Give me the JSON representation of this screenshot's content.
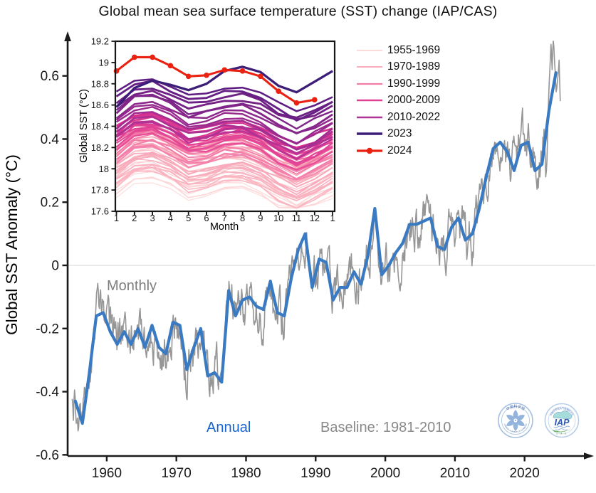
{
  "title": "Global mean sea surface temperature (SST) change (IAP/CAS)",
  "colors": {
    "annual_line": "#3a7ac2",
    "monthly_line": "#969696",
    "annual_label": "#1565d2",
    "monthly_label": "#7d7d7d",
    "baseline_label": "#8a8a8a",
    "axis": "#1a1a1a",
    "zero_line": "#dddddd"
  },
  "chart_data": [
    {
      "id": "main",
      "type": "line",
      "title": "Global mean sea surface temperature (SST) change (IAP/CAS)",
      "xlabel": "",
      "ylabel": "Global SST Anomaly (°C)",
      "xlim": [
        1954.2,
        2026.6
      ],
      "ylim": [
        -0.62,
        0.74
      ],
      "x_ticks": [
        1960,
        1970,
        1980,
        1990,
        2000,
        2010,
        2020
      ],
      "y_ticks": [
        -0.6,
        -0.4,
        -0.2,
        0,
        0.2,
        0.4,
        0.6
      ],
      "grid": "zero-line-only",
      "annotations": [
        {
          "text": "Monthly"
        },
        {
          "text": "Annual"
        },
        {
          "text": "Baseline: 1981-2010"
        }
      ],
      "series": [
        {
          "name": "Annual",
          "color": "#3a7ac2",
          "width": 4.2,
          "years": [
            1955,
            1956,
            1957,
            1958,
            1959,
            1960,
            1961,
            1962,
            1963,
            1964,
            1965,
            1966,
            1967,
            1968,
            1969,
            1970,
            1971,
            1972,
            1973,
            1974,
            1975,
            1976,
            1977,
            1978,
            1979,
            1980,
            1981,
            1982,
            1983,
            1984,
            1985,
            1986,
            1987,
            1988,
            1989,
            1990,
            1991,
            1992,
            1993,
            1994,
            1995,
            1996,
            1997,
            1998,
            1999,
            2000,
            2001,
            2002,
            2003,
            2004,
            2005,
            2006,
            2007,
            2008,
            2009,
            2010,
            2011,
            2012,
            2013,
            2014,
            2015,
            2016,
            2017,
            2018,
            2019,
            2020,
            2021,
            2022,
            2023,
            2024
          ],
          "values": [
            -0.43,
            -0.5,
            -0.34,
            -0.16,
            -0.15,
            -0.21,
            -0.25,
            -0.21,
            -0.25,
            -0.2,
            -0.26,
            -0.19,
            -0.26,
            -0.28,
            -0.18,
            -0.19,
            -0.33,
            -0.26,
            -0.2,
            -0.35,
            -0.34,
            -0.37,
            -0.08,
            -0.16,
            -0.11,
            -0.1,
            -0.13,
            -0.14,
            -0.05,
            -0.15,
            -0.16,
            -0.04,
            0.05,
            0.1,
            -0.07,
            0.02,
            0.01,
            -0.11,
            -0.07,
            -0.07,
            -0.02,
            -0.06,
            0.03,
            0.18,
            -0.03,
            0.0,
            0.04,
            0.07,
            0.13,
            0.13,
            0.14,
            0.15,
            0.06,
            0.05,
            0.12,
            0.15,
            0.08,
            0.1,
            0.18,
            0.28,
            0.37,
            0.39,
            0.36,
            0.3,
            0.38,
            0.39,
            0.3,
            0.32,
            0.49,
            0.61
          ]
        },
        {
          "name": "Monthly",
          "color": "#969696",
          "width": 1.6,
          "derivation": "annual series interpolated monthly plus intra-annual variability",
          "noise_amplitude": 0.1,
          "recent_monthly": {
            "start_year": 2023,
            "values": [
              0.28,
              0.3,
              0.33,
              0.4,
              0.47,
              0.53,
              0.58,
              0.62,
              0.66,
              0.7,
              0.66,
              0.62,
              0.68,
              0.71,
              0.69,
              0.65,
              0.62,
              0.58,
              0.55,
              0.56,
              0.58,
              0.6,
              0.62,
              0.65,
              0.58,
              0.52
            ]
          }
        }
      ]
    },
    {
      "id": "inset",
      "type": "line",
      "xlabel": "Month",
      "ylabel": "Global SST (°C)",
      "ylim": [
        17.6,
        19.2
      ],
      "y_ticks": [
        17.6,
        17.8,
        18,
        18.2,
        18.4,
        18.6,
        18.8,
        19,
        19.2
      ],
      "x_tick_labels": [
        "1",
        "2",
        "3",
        "4",
        "5",
        "6",
        "7",
        "8",
        "9",
        "10",
        "11",
        "12",
        "1"
      ],
      "legend": [
        {
          "label": "1955-1969",
          "color": "#fcd4d4",
          "width": 1.8,
          "marker": false
        },
        {
          "label": "1970-1989",
          "color": "#f9aebb",
          "width": 2.0,
          "marker": false
        },
        {
          "label": "1990-1999",
          "color": "#f47ca8",
          "width": 2.2,
          "marker": false
        },
        {
          "label": "2000-2009",
          "color": "#e24292",
          "width": 2.4,
          "marker": false
        },
        {
          "label": "2010-2022",
          "color": "#b03396",
          "width": 2.6,
          "marker": false
        },
        {
          "label": "2023",
          "color": "#3c1d78",
          "width": 3.4,
          "marker": false
        },
        {
          "label": "2024",
          "color": "#ea2110",
          "width": 3.2,
          "marker": true
        }
      ],
      "seasonal_shape": [
        0,
        0.12,
        0.14,
        0.07,
        -0.02,
        0,
        0.05,
        0.06,
        0,
        -0.1,
        -0.17,
        -0.1,
        -0.01
      ],
      "groups": [
        {
          "label": "1955-1969",
          "count": 15,
          "base_min": 17.75,
          "base_max": 18.08,
          "color_start": "#fddada",
          "color_end": "#fbc2ca",
          "width": 1.1
        },
        {
          "label": "1970-1989",
          "count": 20,
          "base_min": 17.82,
          "base_max": 18.22,
          "color_start": "#fab6c2",
          "color_end": "#f79cb2",
          "width": 1.3
        },
        {
          "label": "1990-1999",
          "count": 10,
          "base_min": 18.05,
          "base_max": 18.3,
          "color_start": "#f584ae",
          "color_end": "#ef6b9e",
          "width": 1.6
        },
        {
          "label": "2000-2009",
          "count": 10,
          "base_min": 18.18,
          "base_max": 18.4,
          "color_start": "#e74d97",
          "color_end": "#d52f90",
          "width": 1.9
        },
        {
          "label": "2010-2022",
          "count": 13,
          "base_min": 18.28,
          "base_max": 18.7,
          "color_start": "#bc3295",
          "color_end": "#5e1d82",
          "width": 2.3
        }
      ],
      "series_2023": {
        "name": "2023",
        "color": "#3c1d78",
        "width": 3.3,
        "values": [
          18.58,
          18.76,
          18.83,
          18.79,
          18.74,
          18.8,
          18.92,
          18.96,
          18.91,
          18.78,
          18.72,
          18.82,
          18.92
        ]
      },
      "series_2024": {
        "name": "2024",
        "color": "#ea2110",
        "width": 3.1,
        "marker_radius": 3.8,
        "values": [
          18.92,
          19.05,
          19.05,
          18.97,
          18.87,
          18.88,
          18.93,
          18.92,
          18.87,
          18.73,
          18.62,
          18.65
        ]
      }
    }
  ],
  "logos": {
    "cas": {
      "ring_text_top": "中国科学院",
      "ring_text_bottom": "CHINESE ACADEMY OF SCIENCES"
    },
    "iap": {
      "ring_text_top": "中国科学院大气物理研究所",
      "text": "IAP",
      "sub": "C A S"
    }
  }
}
